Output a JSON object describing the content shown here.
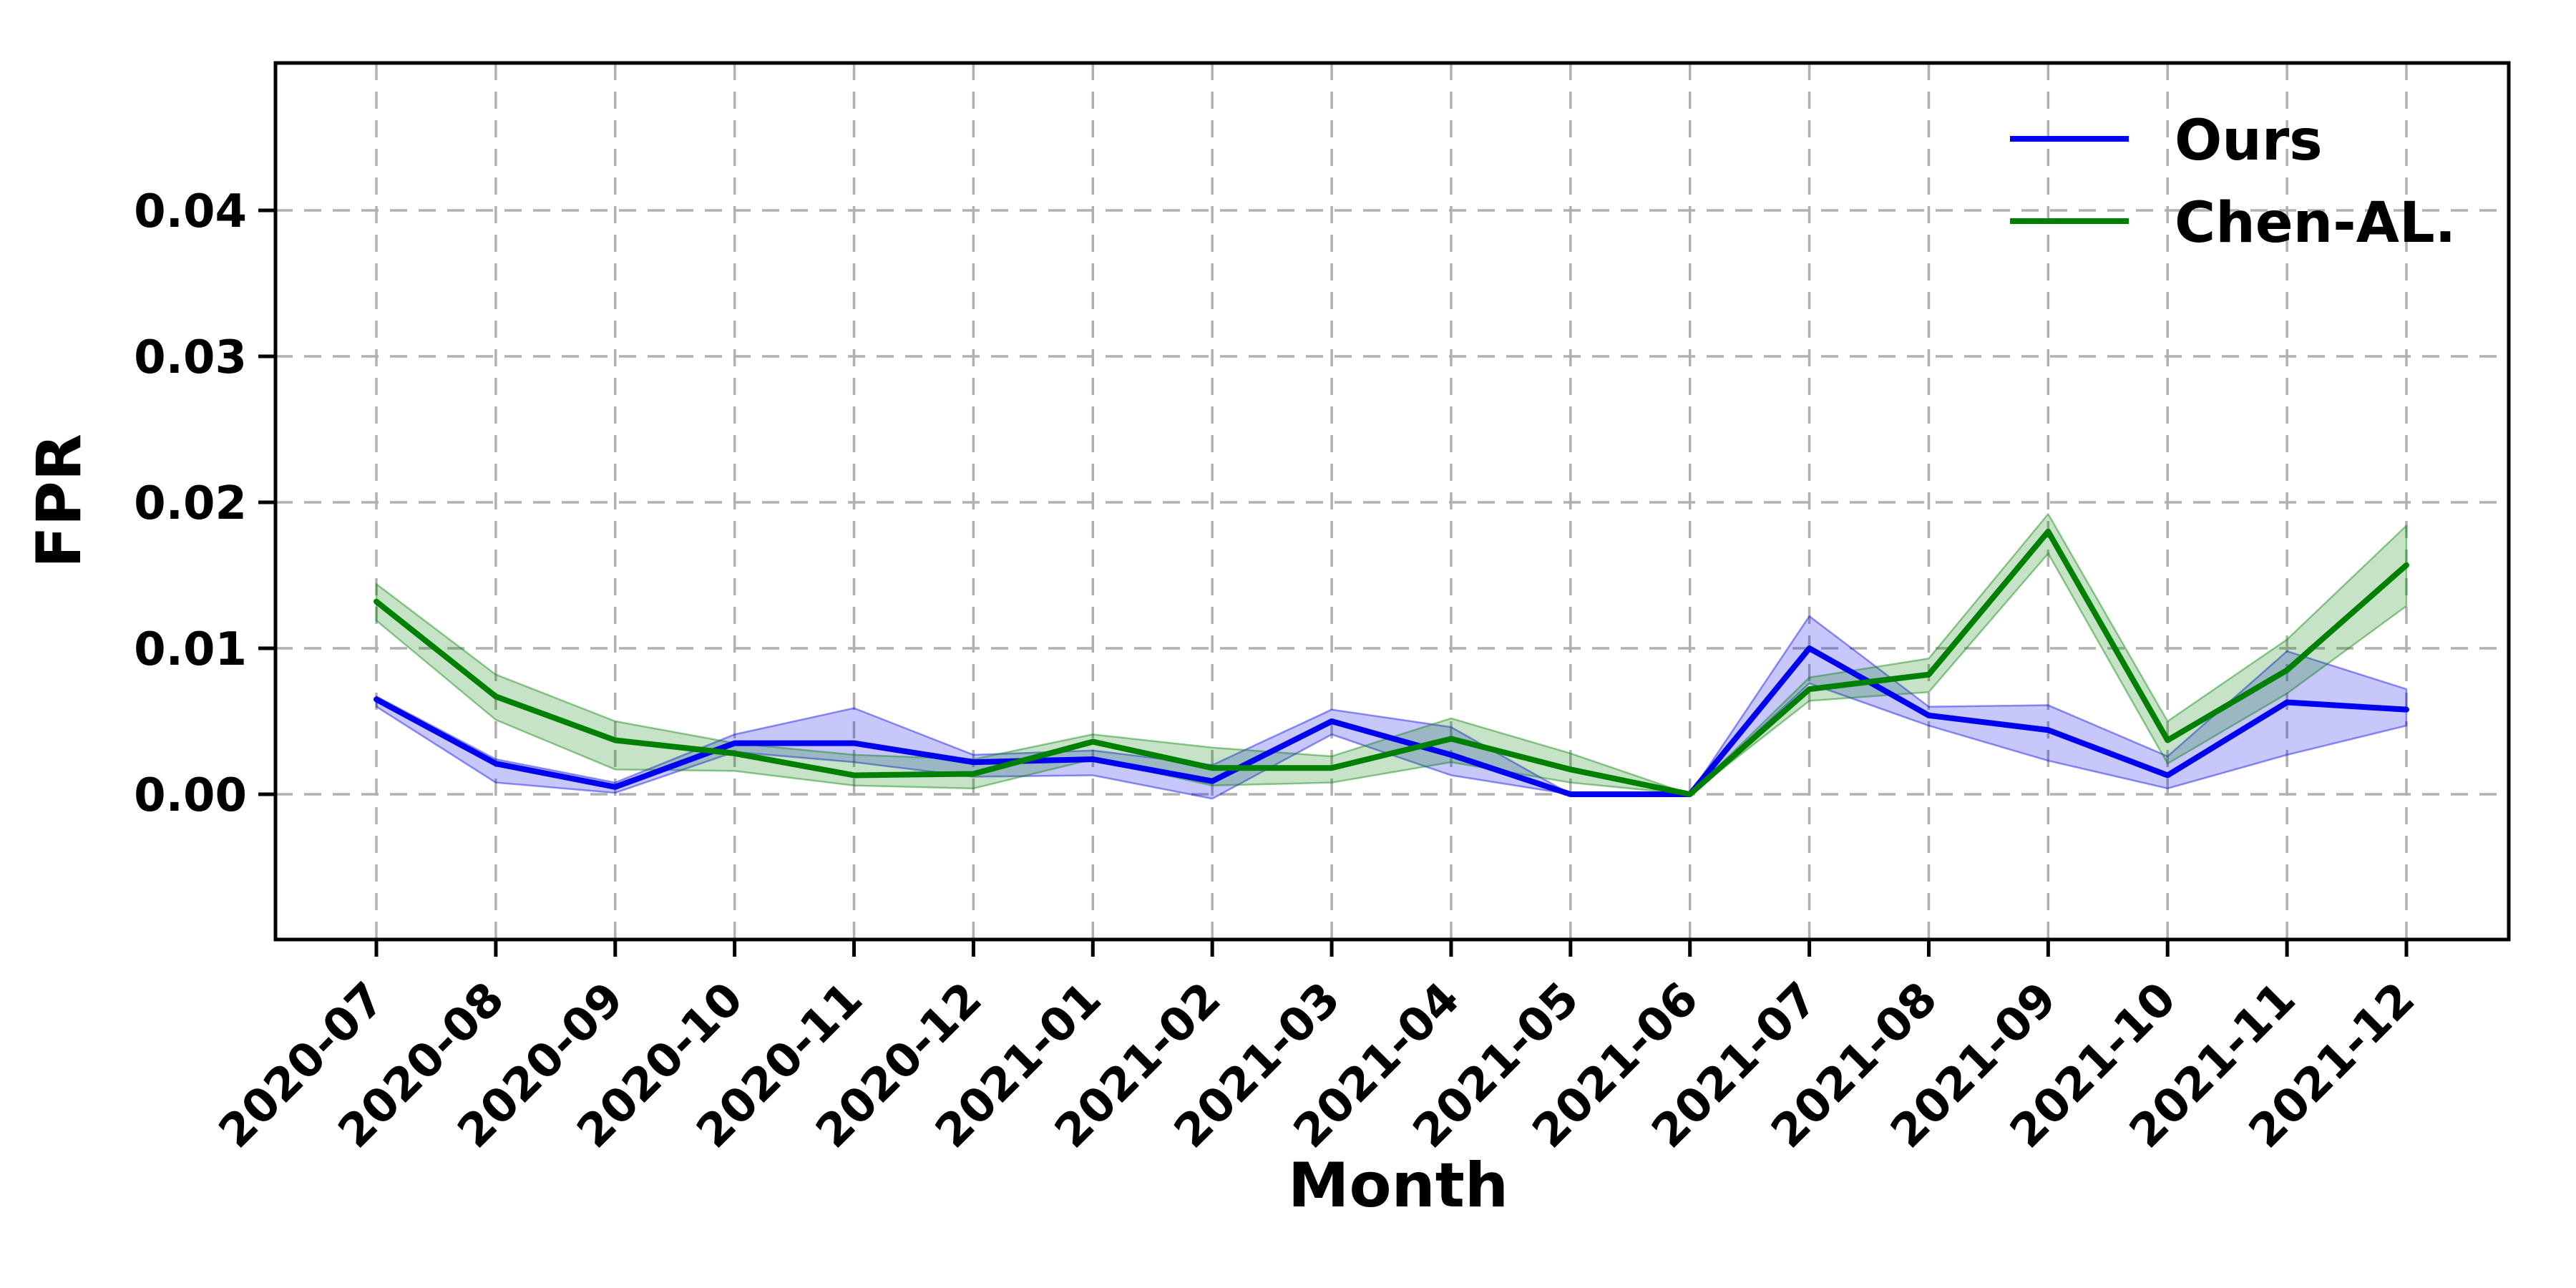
{
  "chart_data": {
    "type": "line",
    "title": "",
    "xlabel": "Month",
    "ylabel": "FPR",
    "categories": [
      "2020-07",
      "2020-08",
      "2020-09",
      "2020-10",
      "2020-11",
      "2020-12",
      "2021-01",
      "2021-02",
      "2021-03",
      "2021-04",
      "2021-05",
      "2021-06",
      "2021-07",
      "2021-08",
      "2021-09",
      "2021-10",
      "2021-11",
      "2021-12"
    ],
    "ytick_labels": [
      "0.00",
      "0.01",
      "0.02",
      "0.03",
      "0.04"
    ],
    "ytick_values": [
      0.0,
      0.01,
      0.02,
      0.03,
      0.04
    ],
    "ylim": [
      -0.01,
      0.05
    ],
    "grid": "dashed",
    "grid_color": "#b0b0b0",
    "background": "#ffffff",
    "legend_position": "upper right",
    "series": [
      {
        "name": "Ours",
        "color": "#0000f0",
        "values": [
          0.0065,
          0.0021,
          0.0005,
          0.0035,
          0.0035,
          0.0022,
          0.0024,
          0.0009,
          0.005,
          0.0027,
          0.0,
          0.0,
          0.01,
          0.0054,
          0.0044,
          0.0013,
          0.0063,
          0.0058
        ],
        "band_lower": [
          0.006,
          0.0008,
          0.0001,
          0.0029,
          0.0022,
          0.0012,
          0.0013,
          -0.0003,
          0.0041,
          0.0013,
          0.0,
          0.0,
          0.0076,
          0.0047,
          0.0023,
          0.0004,
          0.0027,
          0.0047
        ],
        "band_upper": [
          0.0067,
          0.0024,
          0.0008,
          0.0041,
          0.0059,
          0.0027,
          0.003,
          0.002,
          0.0058,
          0.0046,
          0.0,
          0.0,
          0.0122,
          0.006,
          0.0061,
          0.0026,
          0.0098,
          0.0072
        ]
      },
      {
        "name": "Chen-AL.",
        "color": "#008000",
        "values": [
          0.0132,
          0.0067,
          0.0037,
          0.0028,
          0.0013,
          0.0014,
          0.0036,
          0.0018,
          0.0018,
          0.0038,
          0.0017,
          0.0,
          0.0072,
          0.0082,
          0.018,
          0.0037,
          0.0085,
          0.0157
        ],
        "band_lower": [
          0.0119,
          0.0051,
          0.0017,
          0.0016,
          0.0006,
          0.0004,
          0.0024,
          0.0006,
          0.0008,
          0.0022,
          0.0008,
          0.0,
          0.0064,
          0.007,
          0.0165,
          0.0021,
          0.0069,
          0.0129
        ],
        "band_upper": [
          0.0144,
          0.0082,
          0.005,
          0.0035,
          0.0027,
          0.0024,
          0.0041,
          0.0032,
          0.0026,
          0.0052,
          0.0028,
          0.0,
          0.008,
          0.0093,
          0.0192,
          0.005,
          0.0106,
          0.0184
        ]
      }
    ]
  }
}
